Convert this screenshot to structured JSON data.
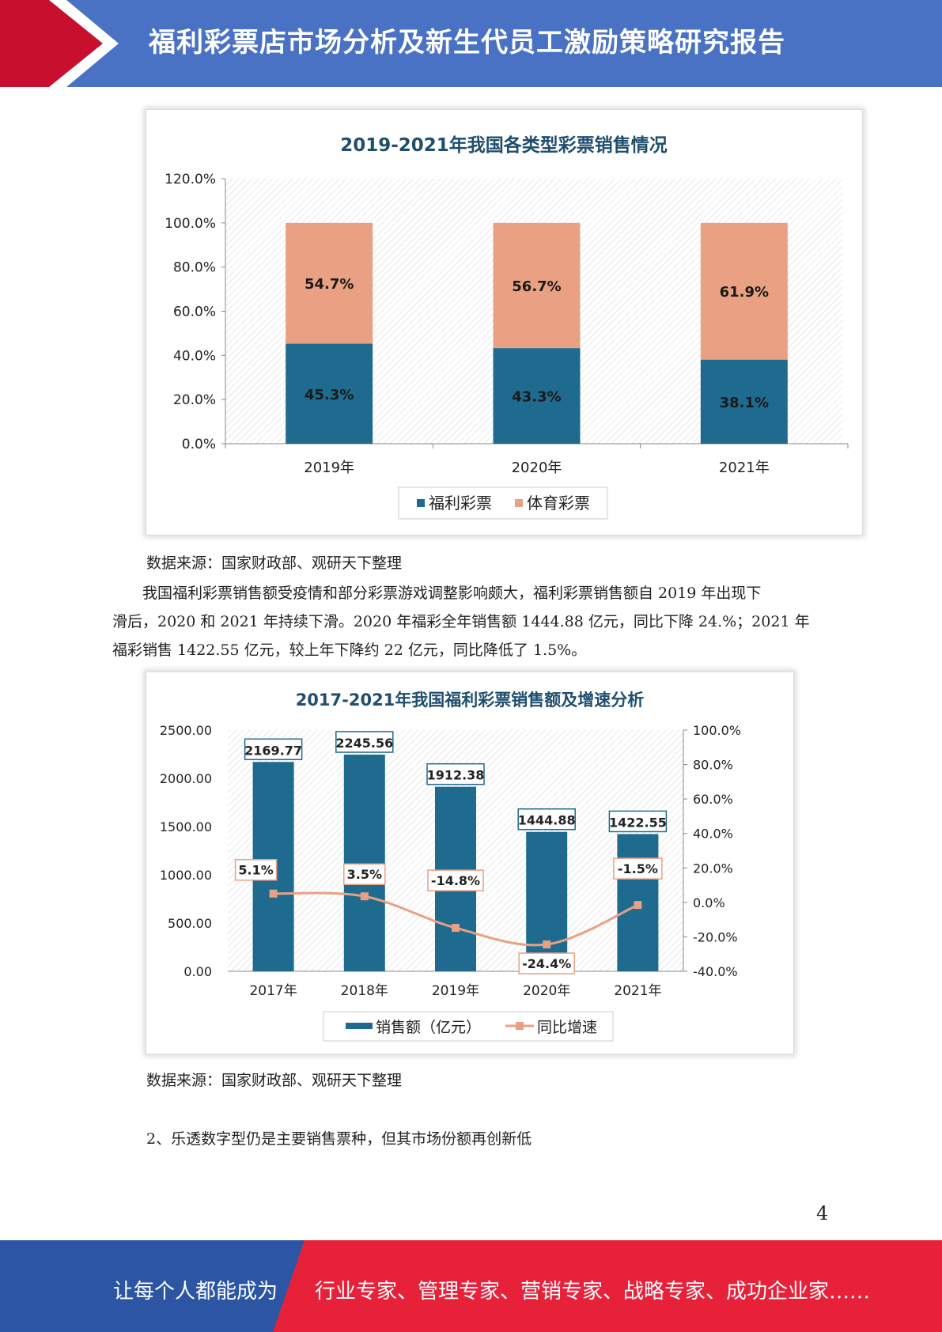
{
  "header": {
    "title": "福利彩票店市场分析及新生代员工激励策略研究报告"
  },
  "chart1": {
    "title": "2019-2021年我国各类型彩票销售情况",
    "legend": [
      "福利彩票",
      "体育彩票"
    ],
    "colors": {
      "welfare": "#1f6b8f",
      "sports": "#e9a083"
    }
  },
  "chart2": {
    "title": "2017-2021年我国福利彩票销售额及增速分析",
    "legend": [
      "销售额（亿元）",
      "同比增速"
    ],
    "colors": {
      "bar": "#1f6b8f",
      "line": "#e9a083"
    }
  },
  "chart_data": [
    {
      "type": "bar",
      "stacked": true,
      "title": "2019-2021年我国各类型彩票销售情况",
      "categories": [
        "2019年",
        "2020年",
        "2021年"
      ],
      "series": [
        {
          "name": "福利彩票",
          "values": [
            45.3,
            43.3,
            38.1
          ],
          "labels": [
            "45.3%",
            "43.3%",
            "38.1%"
          ]
        },
        {
          "name": "体育彩票",
          "values": [
            54.7,
            56.7,
            61.9
          ],
          "labels": [
            "54.7%",
            "56.7%",
            "61.9%"
          ]
        }
      ],
      "ylim": [
        0,
        120
      ],
      "yticks": [
        "0.0%",
        "20.0%",
        "40.0%",
        "60.0%",
        "80.0%",
        "100.0%",
        "120.0%"
      ],
      "legend_position": "bottom"
    },
    {
      "type": "bar",
      "title": "2017-2021年我国福利彩票销售额及增速分析",
      "categories": [
        "2017年",
        "2018年",
        "2019年",
        "2020年",
        "2021年"
      ],
      "series": [
        {
          "name": "销售额（亿元）",
          "values": [
            2169.77,
            2245.56,
            1912.38,
            1444.88,
            1422.55
          ],
          "labels": [
            "2169.77",
            "2245.56",
            "1912.38",
            "1444.88",
            "1422.55"
          ],
          "axis": "left"
        },
        {
          "name": "同比增速",
          "type": "line",
          "values": [
            5.1,
            3.5,
            -14.8,
            -24.4,
            -1.5
          ],
          "labels": [
            "5.1%",
            "3.5%",
            "-14.8%",
            "-24.4%",
            "-1.5%"
          ],
          "axis": "right"
        }
      ],
      "ylim": [
        0,
        2500
      ],
      "y2lim": [
        -40,
        100
      ],
      "yticks": [
        "0.00",
        "500.00",
        "1000.00",
        "1500.00",
        "2000.00",
        "2500.00"
      ],
      "y2ticks": [
        "-40.0%",
        "-20.0%",
        "0.0%",
        "20.0%",
        "40.0%",
        "60.0%",
        "80.0%",
        "100.0%"
      ],
      "legend_position": "bottom"
    }
  ],
  "text": {
    "source1": "数据来源：国家财政部、观研天下整理",
    "para1": "我国福利彩票销售额受疫情和部分彩票游戏调整影响颇大，福利彩票销售额自 2019 年出现下滑后，2020 和 2021 年持续下滑。2020 年福彩全年销售额 1444.88 亿元，同比下降 24.%；2021 年福彩销售 1422.55 亿元，较上年下降约 22 亿元，同比降低了 1.5%。",
    "para1_lines": [
      "　　我国福利彩票销售额受疫情和部分彩票游戏调整影响颇大，福利彩票销售额自 2019 年出现下",
      "滑后，2020 和 2021 年持续下滑。2020 年福彩全年销售额 1444.88 亿元，同比下降 24.%；2021 年",
      "福彩销售 1422.55 亿元，较上年下降约 22 亿元，同比降低了 1.5%。"
    ],
    "source2": "数据来源：国家财政部、观研天下整理",
    "section": "2、乐透数字型仍是主要销售票种，但其市场份额再创新低"
  },
  "page_number": "4",
  "footer": {
    "left": "让每个人都能成为",
    "right": "行业专家、管理专家、营销专家、战略专家、成功企业家……",
    "colors": {
      "blue": "#2c56a3",
      "red": "#e8213a"
    }
  }
}
